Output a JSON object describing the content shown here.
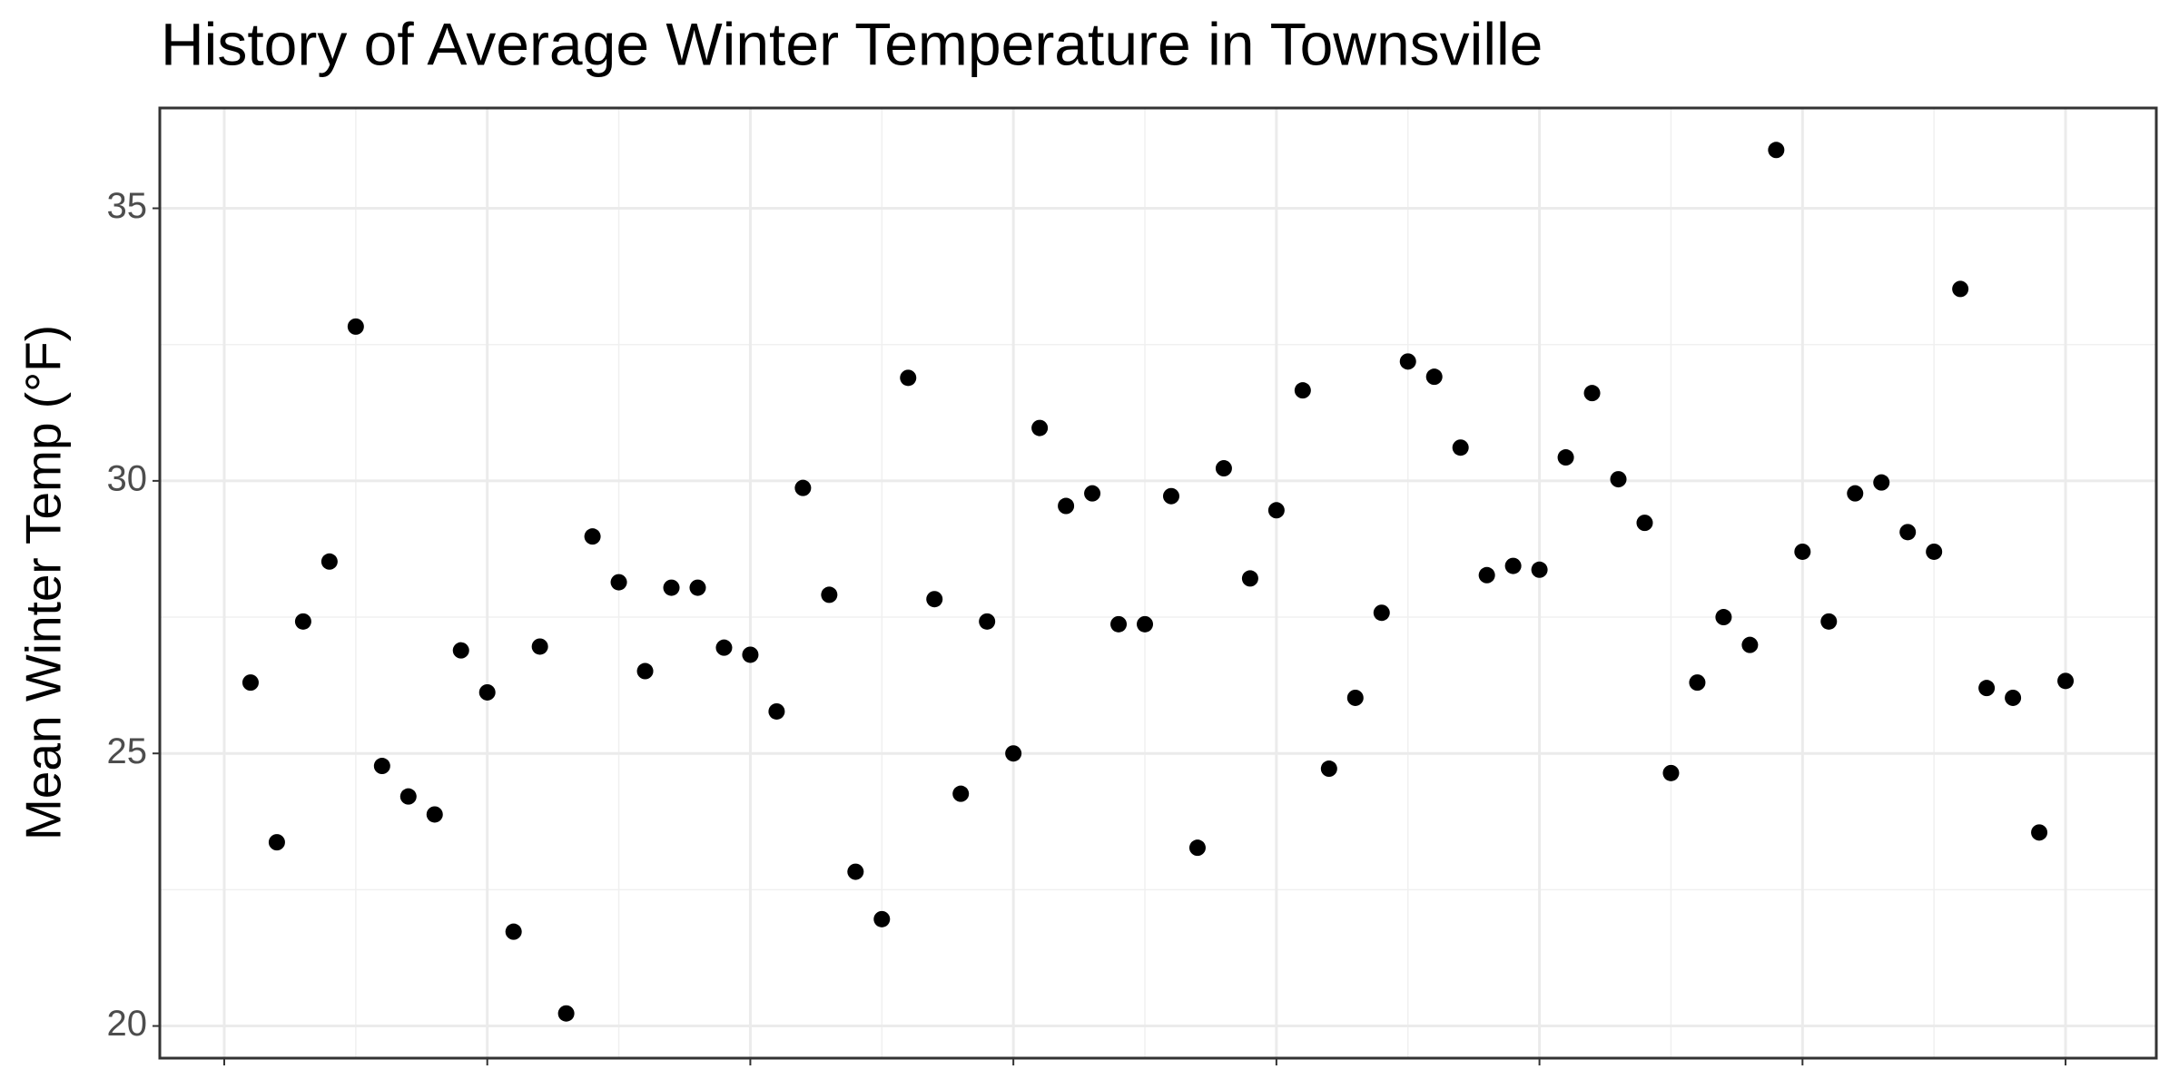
{
  "chart_data": {
    "type": "scatter",
    "title": "History of Average Winter Temperature in Townsville",
    "ylabel": "Mean Winter Temp (°F)",
    "x": [
      1,
      2,
      3,
      4,
      5,
      6,
      7,
      8,
      9,
      10,
      11,
      12,
      13,
      14,
      15,
      16,
      17,
      18,
      19,
      20,
      21,
      22,
      23,
      24,
      25,
      26,
      27,
      28,
      29,
      30,
      31,
      32,
      33,
      34,
      35,
      36,
      37,
      38,
      39,
      40,
      41,
      42,
      43,
      44,
      45,
      46,
      47,
      48,
      49,
      50,
      51,
      52,
      53,
      54,
      55,
      56,
      57,
      58,
      59,
      60,
      61,
      62,
      63,
      64,
      65,
      66,
      67,
      68,
      69,
      70
    ],
    "values": [
      26.3,
      23.37,
      27.42,
      28.52,
      32.83,
      24.77,
      24.21,
      23.88,
      26.89,
      26.12,
      21.73,
      26.96,
      20.23,
      28.98,
      28.14,
      26.51,
      28.04,
      28.04,
      26.94,
      26.81,
      25.77,
      29.87,
      27.91,
      22.83,
      21.96,
      31.89,
      27.83,
      24.26,
      27.42,
      25.0,
      30.97,
      29.54,
      29.77,
      27.37,
      27.37,
      29.72,
      23.27,
      30.23,
      28.21,
      29.46,
      31.66,
      24.72,
      26.02,
      27.58,
      32.19,
      31.91,
      30.61,
      28.27,
      28.44,
      28.37,
      30.43,
      31.61,
      30.03,
      29.23,
      24.64,
      26.3,
      27.5,
      26.99,
      36.07,
      28.7,
      27.42,
      29.77,
      29.97,
      29.06,
      28.7,
      33.52,
      26.2,
      26.02,
      23.55,
      26.33
    ],
    "color": "#000000",
    "xlim": [
      -2.45,
      73.45
    ],
    "xticks": [
      0,
      10,
      20,
      30,
      40,
      50,
      60,
      70
    ],
    "ylim": [
      19.41,
      36.84
    ],
    "yticks": [
      20,
      25,
      30,
      35
    ],
    "grid": true
  }
}
